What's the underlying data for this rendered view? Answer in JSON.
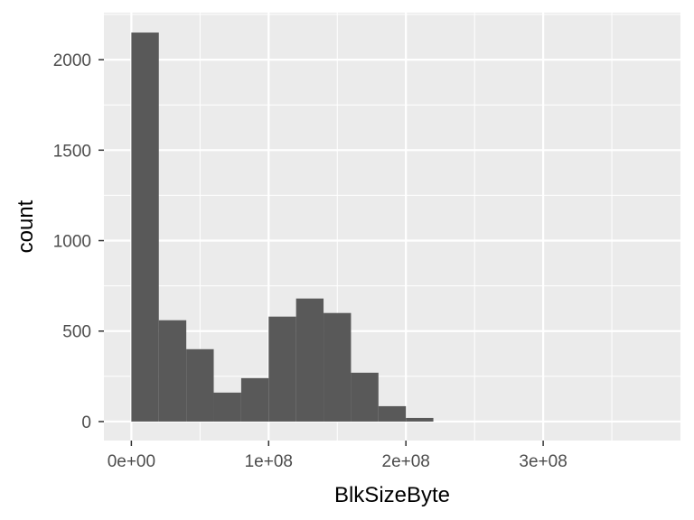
{
  "chart_data": {
    "type": "bar",
    "title": "",
    "xlabel": "BlkSizeByte",
    "ylabel": "count",
    "bin_width": 20000000,
    "bins": [
      {
        "start": 0,
        "end": 20000000,
        "count": 2150
      },
      {
        "start": 20000000,
        "end": 40000000,
        "count": 560
      },
      {
        "start": 40000000,
        "end": 60000000,
        "count": 400
      },
      {
        "start": 60000000,
        "end": 80000000,
        "count": 160
      },
      {
        "start": 80000000,
        "end": 100000000,
        "count": 240
      },
      {
        "start": 100000000,
        "end": 120000000,
        "count": 580
      },
      {
        "start": 120000000,
        "end": 140000000,
        "count": 680
      },
      {
        "start": 140000000,
        "end": 160000000,
        "count": 600
      },
      {
        "start": 160000000,
        "end": 180000000,
        "count": 270
      },
      {
        "start": 180000000,
        "end": 200000000,
        "count": 85
      },
      {
        "start": 200000000,
        "end": 220000000,
        "count": 20
      }
    ],
    "xlim": [
      -20000000,
      400000000
    ],
    "ylim": [
      -105,
      2260
    ],
    "x_ticks": [
      {
        "value": 0,
        "label": "0e+00"
      },
      {
        "value": 100000000,
        "label": "1e+08"
      },
      {
        "value": 200000000,
        "label": "2e+08"
      },
      {
        "value": 300000000,
        "label": "3e+08"
      }
    ],
    "y_ticks": [
      {
        "value": 0,
        "label": "0"
      },
      {
        "value": 500,
        "label": "500"
      },
      {
        "value": 1000,
        "label": "1000"
      },
      {
        "value": 1500,
        "label": "1500"
      },
      {
        "value": 2000,
        "label": "2000"
      }
    ],
    "grid": true,
    "colors": {
      "panel_background": "#ebebeb",
      "grid_major": "#ffffff",
      "bar_fill": "#595959",
      "tick_label": "#4d4d4d",
      "tick_mark": "#333333",
      "axis_title": "#000000"
    }
  }
}
